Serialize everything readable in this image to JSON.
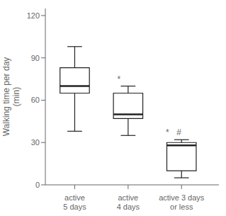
{
  "chart_data": {
    "type": "box",
    "categories": [
      "active\n5 days",
      "active\n4 days",
      "active 3 days\nor less"
    ],
    "boxes": [
      {
        "whislo": 38,
        "q1": 65,
        "med": 70,
        "q3": 83,
        "whishi": 98
      },
      {
        "whislo": 35,
        "q1": 47,
        "med": 50,
        "q3": 65,
        "whishi": 70
      },
      {
        "whislo": 5,
        "q1": 10,
        "med": 28,
        "q3": 30,
        "whishi": 32
      }
    ],
    "ylabel": "Walking time per day\n(min)",
    "ylim": [
      0,
      125
    ],
    "yticks": [
      0,
      30,
      60,
      90,
      120
    ],
    "xlim": [
      0.45,
      3.7
    ],
    "annotations": [
      {
        "text": "*",
        "x": 1.82,
        "y": 72
      },
      {
        "text": "*",
        "x": 2.73,
        "y": 34
      },
      {
        "text": "#",
        "x": 2.95,
        "y": 34
      }
    ],
    "color": "#222222",
    "grid": false
  }
}
